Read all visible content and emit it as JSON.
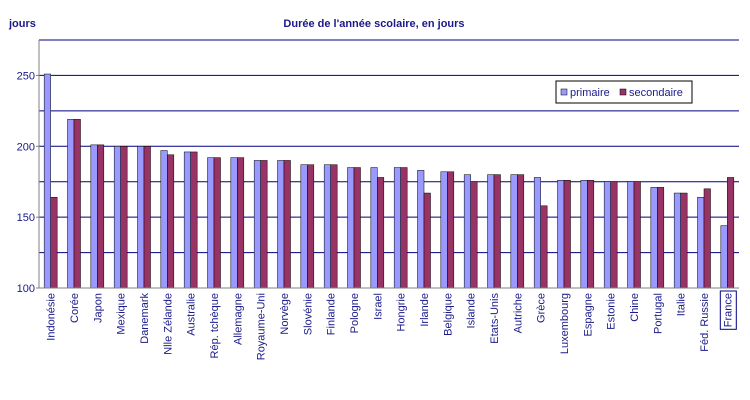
{
  "chart_data": {
    "type": "bar",
    "title": "Durée de l'année scolaire, en jours",
    "ylabel": "jours",
    "xlabel": "",
    "ylim": [
      100,
      275
    ],
    "yticks": [
      100,
      150,
      200,
      250
    ],
    "grid": true,
    "legend_position": "top-right",
    "categories": [
      "Indonésie",
      "Corée",
      "Japon",
      "Mexique",
      "Danemark",
      "Nlle Zélande",
      "Australie",
      "Rép. tchèque",
      "Allemagne",
      "Royaume-Uni",
      "Norvège",
      "Slovénie",
      "Finlande",
      "Pologne",
      "Israel",
      "Hongrie",
      "Irlande",
      "Belgique",
      "Islande",
      "Etats-Unis",
      "Autriche",
      "Grèce",
      "Luxembourg",
      "Espagne",
      "Estonie",
      "Chine",
      "Portugal",
      "Italie",
      "Féd. Russie",
      "France"
    ],
    "highlighted_category": "France",
    "series": [
      {
        "name": "primaire",
        "color": "#9999ff",
        "values": [
          251,
          219,
          201,
          200,
          200,
          197,
          196,
          192,
          192,
          190,
          190,
          187,
          187,
          185,
          185,
          185,
          183,
          182,
          180,
          180,
          180,
          178,
          176,
          176,
          175,
          175,
          171,
          167,
          164,
          144
        ]
      },
      {
        "name": "secondaire",
        "color": "#993366",
        "values": [
          164,
          219,
          201,
          200,
          200,
          194,
          196,
          192,
          192,
          190,
          190,
          187,
          187,
          185,
          178,
          185,
          167,
          182,
          175,
          180,
          180,
          158,
          176,
          176,
          175,
          175,
          171,
          167,
          170,
          178
        ]
      }
    ]
  }
}
